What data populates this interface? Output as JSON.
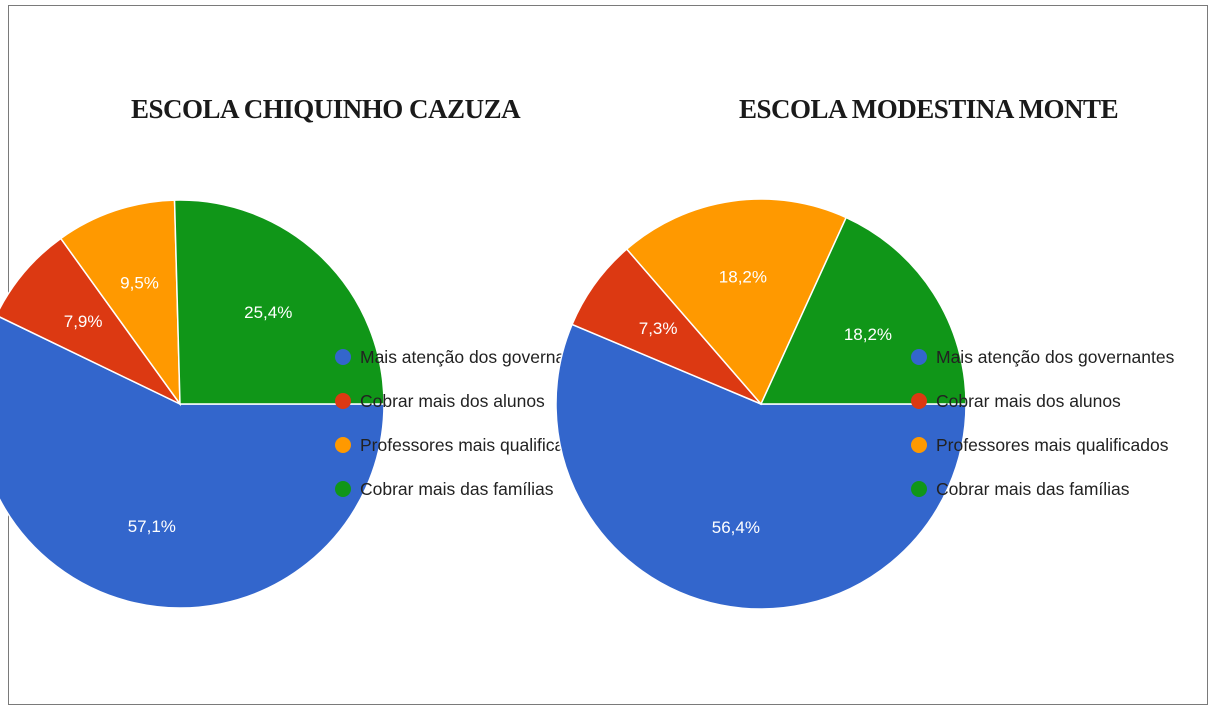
{
  "colors": {
    "blue": "#3366cc",
    "red": "#dc3912",
    "orange": "#ff9900",
    "green": "#109618"
  },
  "chart_data": [
    {
      "type": "pie",
      "title": "ESCOLA CHIQUINHO CAZUZA",
      "categories": [
        "Mais atenção dos governantes",
        "Cobrar mais dos alunos",
        "Professores mais qualificados",
        "Cobrar mais das famílias"
      ],
      "values": [
        57.1,
        7.9,
        9.5,
        25.4
      ],
      "value_labels": [
        "57,1%",
        "7,9%",
        "9,5%",
        "25,4%"
      ],
      "colors": [
        "#3366cc",
        "#dc3912",
        "#ff9900",
        "#109618"
      ],
      "legend_position": "right"
    },
    {
      "type": "pie",
      "title": "ESCOLA MODESTINA MONTE",
      "categories": [
        "Mais atenção dos governantes",
        "Cobrar mais dos alunos",
        "Professores mais qualificados",
        "Cobrar mais das famílias"
      ],
      "values": [
        56.4,
        7.3,
        18.2,
        18.2
      ],
      "value_labels": [
        "56,4%",
        "7,3%",
        "18,2%",
        "18,2%"
      ],
      "colors": [
        "#3366cc",
        "#dc3912",
        "#ff9900",
        "#109618"
      ],
      "legend_position": "right"
    }
  ]
}
